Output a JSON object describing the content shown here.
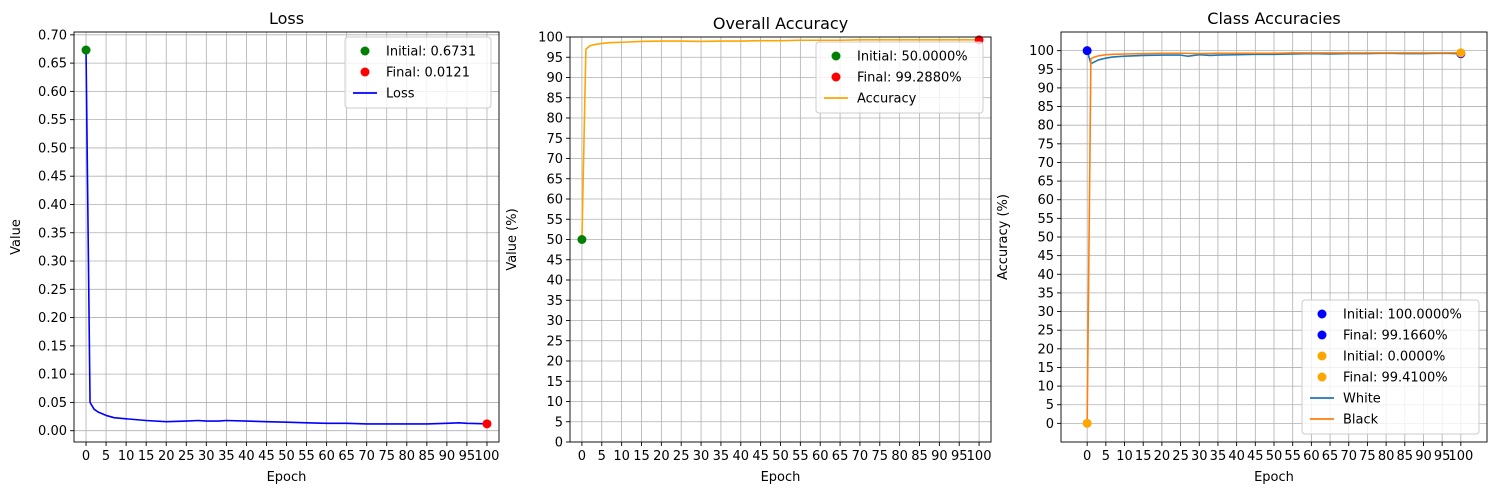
{
  "chart_data": [
    {
      "type": "line",
      "title": "Loss",
      "xlabel": "Epoch",
      "ylabel": "Value",
      "xlim": [
        -3,
        103
      ],
      "ylim": [
        -0.02,
        0.705
      ],
      "xticks": [
        0,
        5,
        10,
        15,
        20,
        25,
        30,
        35,
        40,
        45,
        50,
        55,
        60,
        65,
        70,
        75,
        80,
        85,
        90,
        95,
        100
      ],
      "yticks": [
        0.0,
        0.05,
        0.1,
        0.15,
        0.2,
        0.25,
        0.3,
        0.35,
        0.4,
        0.45,
        0.5,
        0.55,
        0.6,
        0.65,
        0.7
      ],
      "ytick_labels": [
        "0.00",
        "0.05",
        "0.10",
        "0.15",
        "0.20",
        "0.25",
        "0.30",
        "0.35",
        "0.40",
        "0.45",
        "0.50",
        "0.55",
        "0.60",
        "0.65",
        "0.70"
      ],
      "grid": true,
      "legend_position": "top-right",
      "series": [
        {
          "name": "Loss",
          "color": "#0000ff",
          "x": [
            0,
            1,
            2,
            3,
            5,
            7,
            10,
            15,
            20,
            25,
            28,
            30,
            33,
            35,
            40,
            45,
            50,
            55,
            60,
            65,
            70,
            75,
            80,
            85,
            90,
            93,
            95,
            100
          ],
          "y": [
            0.6731,
            0.05,
            0.038,
            0.033,
            0.027,
            0.023,
            0.021,
            0.018,
            0.016,
            0.017,
            0.018,
            0.017,
            0.017,
            0.018,
            0.017,
            0.016,
            0.015,
            0.014,
            0.013,
            0.013,
            0.012,
            0.012,
            0.012,
            0.012,
            0.013,
            0.014,
            0.013,
            0.0121
          ]
        }
      ],
      "markers": [
        {
          "label": "Initial: 0.6731",
          "x": 0,
          "y": 0.6731,
          "color": "#008000"
        },
        {
          "label": "Final: 0.0121",
          "x": 100,
          "y": 0.0121,
          "color": "#ff0000"
        }
      ]
    },
    {
      "type": "line",
      "title": "Overall Accuracy",
      "xlabel": "Epoch",
      "ylabel": "Value (%)",
      "xlim": [
        -3,
        103
      ],
      "ylim": [
        0,
        100
      ],
      "xticks": [
        0,
        5,
        10,
        15,
        20,
        25,
        30,
        35,
        40,
        45,
        50,
        55,
        60,
        65,
        70,
        75,
        80,
        85,
        90,
        95,
        100
      ],
      "yticks": [
        0,
        5,
        10,
        15,
        20,
        25,
        30,
        35,
        40,
        45,
        50,
        55,
        60,
        65,
        70,
        75,
        80,
        85,
        90,
        95,
        100
      ],
      "ytick_labels": [
        "0",
        "5",
        "10",
        "15",
        "20",
        "25",
        "30",
        "35",
        "40",
        "45",
        "50",
        "55",
        "60",
        "65",
        "70",
        "75",
        "80",
        "85",
        "90",
        "95",
        "100"
      ],
      "grid": true,
      "legend_position": "top-right",
      "series": [
        {
          "name": "Accuracy",
          "color": "#ffa500",
          "x": [
            0,
            1,
            2,
            3,
            5,
            7,
            10,
            15,
            20,
            25,
            30,
            35,
            40,
            45,
            50,
            55,
            60,
            65,
            70,
            75,
            80,
            85,
            90,
            95,
            100
          ],
          "y": [
            50.0,
            97.0,
            97.8,
            98.1,
            98.4,
            98.6,
            98.7,
            98.9,
            99.0,
            99.0,
            98.9,
            99.0,
            99.0,
            99.1,
            99.1,
            99.2,
            99.2,
            99.2,
            99.3,
            99.3,
            99.3,
            99.3,
            99.3,
            99.3,
            99.288
          ]
        }
      ],
      "markers": [
        {
          "label": "Initial: 50.0000%",
          "x": 0,
          "y": 50.0,
          "color": "#008000"
        },
        {
          "label": "Final: 99.2880%",
          "x": 100,
          "y": 99.288,
          "color": "#ff0000"
        }
      ]
    },
    {
      "type": "line",
      "title": "Class Accuracies",
      "xlabel": "Epoch",
      "ylabel": "Accuracy (%)",
      "xlim": [
        -7,
        107
      ],
      "ylim": [
        -5,
        105
      ],
      "xticks": [
        0,
        5,
        10,
        15,
        20,
        25,
        30,
        35,
        40,
        45,
        50,
        55,
        60,
        65,
        70,
        75,
        80,
        85,
        90,
        95,
        100
      ],
      "yticks": [
        0,
        5,
        10,
        15,
        20,
        25,
        30,
        35,
        40,
        45,
        50,
        55,
        60,
        65,
        70,
        75,
        80,
        85,
        90,
        95,
        100
      ],
      "ytick_labels": [
        "0",
        "5",
        "10",
        "15",
        "20",
        "25",
        "30",
        "35",
        "40",
        "45",
        "50",
        "55",
        "60",
        "65",
        "70",
        "75",
        "80",
        "85",
        "90",
        "95",
        "100"
      ],
      "grid": true,
      "legend_position": "bottom-right",
      "series": [
        {
          "name": "White",
          "color": "#1f77b4",
          "x": [
            0,
            1,
            2,
            3,
            5,
            7,
            10,
            15,
            20,
            25,
            27,
            30,
            33,
            35,
            40,
            45,
            50,
            55,
            60,
            65,
            70,
            75,
            80,
            85,
            90,
            95,
            100
          ],
          "y": [
            100.0,
            96.5,
            97.0,
            97.5,
            98.0,
            98.3,
            98.5,
            98.7,
            98.8,
            98.8,
            98.5,
            98.9,
            98.7,
            98.8,
            98.9,
            99.0,
            99.0,
            99.1,
            99.2,
            99.1,
            99.2,
            99.2,
            99.3,
            99.2,
            99.2,
            99.3,
            99.166
          ]
        },
        {
          "name": "Black",
          "color": "#ff7f0e",
          "x": [
            0,
            1,
            2,
            3,
            5,
            7,
            10,
            15,
            20,
            25,
            30,
            35,
            40,
            45,
            50,
            55,
            60,
            65,
            70,
            75,
            80,
            85,
            90,
            95,
            100
          ],
          "y": [
            0.0,
            97.8,
            98.3,
            98.6,
            98.9,
            99.0,
            99.1,
            99.2,
            99.3,
            99.3,
            99.2,
            99.3,
            99.3,
            99.3,
            99.3,
            99.4,
            99.4,
            99.4,
            99.4,
            99.4,
            99.4,
            99.4,
            99.4,
            99.4,
            99.41
          ]
        }
      ],
      "markers": [
        {
          "label": "Initial: 100.0000%",
          "x": 0,
          "y": 100.0,
          "color": "#0000ff"
        },
        {
          "label": "Final: 99.1660%",
          "x": 100,
          "y": 99.166,
          "color": "#0000ff"
        },
        {
          "label": "Initial: 0.0000%",
          "x": 0,
          "y": 0.0,
          "color": "#ffa500"
        },
        {
          "label": "Final: 99.4100%",
          "x": 100,
          "y": 99.41,
          "color": "#ffa500"
        }
      ]
    }
  ]
}
